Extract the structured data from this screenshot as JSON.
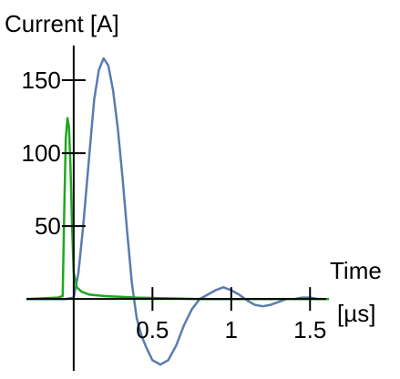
{
  "chart_data": {
    "type": "line",
    "ylabel": "Current [A]",
    "xlabel_line1": "Time",
    "xlabel_line2": "[µs]",
    "x_ticks": [
      0.5,
      1,
      1.5
    ],
    "x_tick_labels": [
      "0.5",
      "1",
      "1.5"
    ],
    "y_ticks": [
      50,
      100,
      150
    ],
    "y_tick_labels": [
      "50",
      "100",
      "150"
    ],
    "xlim": [
      -0.3,
      1.62
    ],
    "ylim": [
      -48,
      175
    ],
    "grid": false,
    "series": [
      {
        "color": "#5b7bb0",
        "x": [
          -0.3,
          -0.2,
          -0.1,
          -0.05,
          0.0,
          0.03,
          0.06,
          0.1,
          0.13,
          0.16,
          0.19,
          0.22,
          0.25,
          0.28,
          0.31,
          0.34,
          0.37,
          0.4,
          0.43,
          0.46,
          0.5,
          0.55,
          0.6,
          0.65,
          0.7,
          0.75,
          0.8,
          0.85,
          0.9,
          0.95,
          1.0,
          1.05,
          1.1,
          1.15,
          1.2,
          1.25,
          1.3,
          1.35,
          1.4,
          1.45,
          1.5,
          1.55,
          1.6
        ],
        "y": [
          0,
          0,
          0,
          0,
          1,
          18,
          50,
          100,
          137,
          157,
          165,
          160,
          143,
          117,
          83,
          45,
          10,
          -13,
          -25,
          -33,
          -42,
          -45,
          -42,
          -32,
          -18,
          -7,
          0,
          3,
          6,
          8,
          6,
          3,
          -1,
          -4,
          -5,
          -4,
          -2,
          0,
          0,
          1,
          1,
          0,
          0
        ]
      },
      {
        "color": "#1fa81f",
        "x": [
          -0.3,
          -0.1,
          -0.07,
          -0.06,
          -0.05,
          -0.04,
          -0.03,
          -0.02,
          -0.01,
          0.0,
          0.02,
          0.05,
          0.1,
          0.2,
          0.4,
          0.8,
          1.2,
          1.62
        ],
        "y": [
          0,
          1,
          2,
          60,
          110,
          124,
          118,
          90,
          50,
          18,
          8,
          5,
          3,
          2,
          1,
          0,
          0,
          0
        ]
      }
    ]
  }
}
